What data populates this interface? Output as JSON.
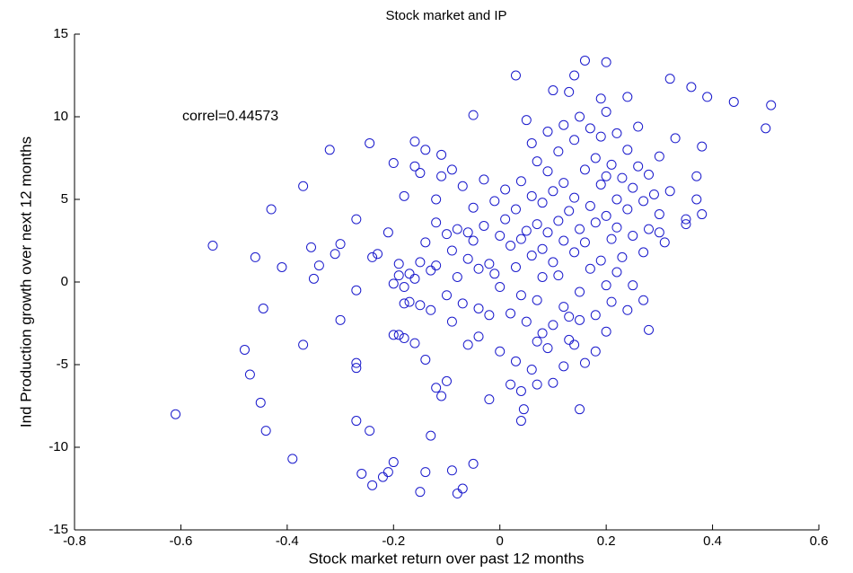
{
  "chart_data": {
    "type": "scatter",
    "title": "Stock market and IP",
    "xlabel": "Stock market return over past 12 months",
    "ylabel": "Ind Production growth over next 12 months",
    "annotation": "correl=0.44573",
    "color": "#1a1acc",
    "xlim": [
      -0.8,
      0.6
    ],
    "xticks": [
      -0.8,
      -0.6,
      -0.4,
      -0.2,
      0,
      0.2,
      0.4,
      0.6
    ],
    "ylim": [
      -15,
      15
    ],
    "yticks": [
      -15,
      -10,
      -5,
      0,
      5,
      10,
      15
    ],
    "x": [
      -0.61,
      -0.54,
      -0.48,
      -0.47,
      -0.46,
      -0.45,
      -0.445,
      -0.44,
      -0.43,
      -0.41,
      -0.39,
      -0.37,
      -0.37,
      -0.355,
      -0.35,
      -0.34,
      -0.32,
      -0.31,
      -0.3,
      -0.3,
      -0.27,
      -0.27,
      -0.27,
      -0.27,
      -0.27,
      -0.26,
      -0.245,
      -0.245,
      -0.24,
      -0.24,
      -0.23,
      -0.22,
      -0.21,
      -0.21,
      -0.2,
      -0.19,
      -0.19,
      -0.2,
      -0.18,
      -0.18,
      -0.17,
      -0.16,
      -0.16,
      -0.15,
      -0.14,
      -0.14,
      -0.13,
      -0.12,
      -0.11,
      -0.1,
      -0.09,
      -0.08,
      -0.07,
      -0.05,
      -0.04,
      -0.02,
      0.04,
      0.04,
      0.045,
      0.03,
      0.07,
      0.1,
      0.15,
      0.12,
      0.16,
      0.28,
      0.03,
      0.14,
      0.16,
      0.2,
      0.19,
      0.24,
      0.32,
      0.36,
      0.39,
      0.44,
      0.5,
      0.51,
      0.38,
      0.33,
      0.37,
      0.38,
      0.37,
      0.35,
      0.35,
      0.3,
      0.27,
      0.25,
      -0.05,
      -0.2,
      -0.19,
      -0.18,
      -0.17,
      -0.16,
      -0.15,
      -0.15,
      -0.14,
      -0.13,
      -0.13,
      -0.12,
      -0.12,
      -0.11,
      -0.11,
      -0.1,
      -0.1,
      -0.09,
      -0.09,
      -0.08,
      -0.08,
      -0.07,
      -0.07,
      -0.06,
      -0.06,
      -0.05,
      -0.05,
      -0.04,
      -0.04,
      -0.03,
      -0.03,
      -0.02,
      -0.02,
      -0.01,
      -0.01,
      0,
      0,
      -0.14,
      -0.15,
      -0.16,
      -0.12,
      -0.09,
      -0.06,
      -0.18,
      -0.2,
      0.01,
      0.01,
      0.02,
      0.02,
      0.03,
      0.03,
      0.04,
      0.04,
      0.04,
      0.05,
      0.05,
      0.05,
      0.06,
      0.06,
      0.06,
      0.07,
      0.07,
      0.07,
      0.08,
      0.08,
      0.08,
      0.08,
      0.09,
      0.09,
      0.09,
      0.1,
      0.1,
      0.1,
      0.1,
      0.11,
      0.11,
      0.11,
      0.12,
      0.12,
      0.12,
      0.12,
      0.13,
      0.13,
      0.13,
      0.14,
      0.14,
      0.14,
      0.15,
      0.15,
      0.15,
      0.15,
      0.16,
      0.16,
      0.17,
      0.17,
      0.17,
      0.18,
      0.18,
      0.18,
      0.19,
      0.19,
      0.19,
      0.2,
      0.2,
      0.2,
      0.2,
      0.21,
      0.21,
      0.21,
      0.22,
      0.22,
      0.22,
      0.23,
      0.23,
      0.24,
      0.24,
      0.24,
      0.25,
      0.25,
      0.26,
      0.26,
      0.27,
      0.27,
      0.28,
      0.28,
      0.29,
      0.3,
      0.3,
      0.31,
      0.32,
      0.22,
      0.18,
      0.14,
      0.09,
      0.06,
      0,
      0.02,
      0.07,
      0.13,
      0.2
    ],
    "values": [
      -8,
      2.2,
      -4.1,
      -5.6,
      1.5,
      -7.3,
      -1.6,
      -9,
      4.4,
      0.9,
      -10.7,
      5.8,
      -3.8,
      2.1,
      0.2,
      1,
      8,
      1.7,
      2.3,
      -2.3,
      3.8,
      -0.5,
      -4.9,
      -5.2,
      -8.4,
      -11.6,
      8.4,
      -9,
      1.5,
      -12.3,
      1.7,
      -11.8,
      -11.5,
      3,
      7.2,
      1.1,
      -3.2,
      -10.9,
      -3.4,
      5.2,
      0.5,
      7,
      -3.7,
      -12.7,
      -4.7,
      -11.5,
      -9.3,
      -6.4,
      -6.9,
      -6,
      -11.4,
      -12.8,
      -12.5,
      -11,
      -3.3,
      -7.1,
      -6.6,
      -8.4,
      -7.7,
      -4.8,
      -6.2,
      -6.1,
      -7.7,
      -5.1,
      -4.9,
      -2.9,
      12.5,
      12.5,
      13.4,
      13.3,
      11.1,
      11.2,
      12.3,
      11.8,
      11.2,
      10.9,
      9.3,
      10.7,
      8.2,
      8.7,
      6.4,
      4.1,
      5,
      3.8,
      3.5,
      3,
      -1.1,
      -0.2,
      10.1,
      -0.1,
      0.4,
      -0.3,
      -1.2,
      0.2,
      1.2,
      -1.4,
      2.4,
      0.7,
      -1.7,
      3.6,
      1,
      6.4,
      7.7,
      2.9,
      -0.8,
      1.9,
      -2.4,
      0.3,
      3.2,
      5.8,
      -1.3,
      1.4,
      -3.8,
      4.5,
      2.5,
      -1.6,
      0.8,
      6.2,
      3.4,
      1.1,
      -2,
      4.9,
      0.5,
      2.8,
      -0.3,
      8,
      6.6,
      8.5,
      5,
      6.8,
      3,
      -1.3,
      -3.2,
      5.6,
      3.8,
      2.2,
      -1.9,
      4.4,
      0.9,
      6.1,
      2.6,
      -0.8,
      9.8,
      3.1,
      -2.4,
      5.2,
      1.6,
      8.4,
      3.5,
      -1.1,
      7.3,
      2,
      4.8,
      0.3,
      -3.1,
      6.7,
      3,
      9.1,
      1.2,
      5.5,
      -2.6,
      11.6,
      3.7,
      7.9,
      0.4,
      2.5,
      9.5,
      -1.5,
      6,
      4.3,
      11.5,
      -3.5,
      1.8,
      8.6,
      5.1,
      3.2,
      10,
      -0.6,
      -2.3,
      6.8,
      2.4,
      9.3,
      4.6,
      0.8,
      7.5,
      3.6,
      -2,
      5.9,
      8.8,
      1.3,
      4,
      6.4,
      10.3,
      -0.2,
      2.6,
      7.1,
      -1.2,
      5,
      9,
      3.3,
      1.5,
      6.3,
      4.4,
      8,
      -1.7,
      2.8,
      5.7,
      9.4,
      7,
      4.9,
      1.8,
      6.5,
      3.2,
      5.3,
      7.6,
      4.1,
      2.4,
      5.5,
      0.6,
      -4.2,
      -3.8,
      -4,
      -5.3,
      -4.2,
      -6.2,
      -3.6,
      -2.1,
      -3
    ]
  }
}
